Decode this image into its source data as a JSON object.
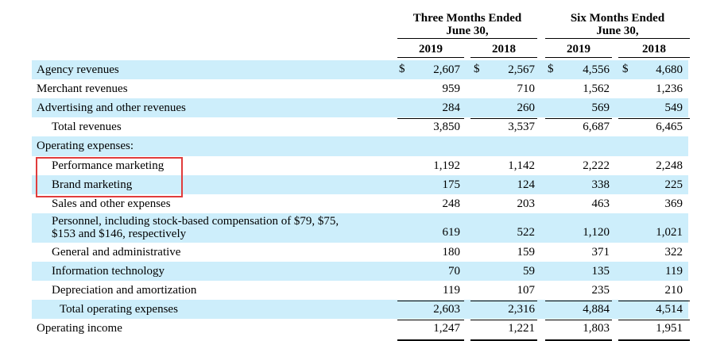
{
  "header": {
    "three_months": "Three Months Ended",
    "three_months_date": "June 30,",
    "six_months": "Six Months Ended",
    "six_months_date": "June 30,",
    "years": [
      "2019",
      "2018",
      "2019",
      "2018"
    ]
  },
  "currency_symbol": "$",
  "rows": [
    {
      "label": "Agency revenues",
      "values": [
        "2,607",
        "2,567",
        "4,556",
        "4,680"
      ],
      "shade": true
    },
    {
      "label": "Merchant revenues",
      "values": [
        "959",
        "710",
        "1,562",
        "1,236"
      ],
      "shade": false
    },
    {
      "label": "Advertising and other revenues",
      "values": [
        "284",
        "260",
        "569",
        "549"
      ],
      "shade": true
    },
    {
      "label": "Total revenues",
      "values": [
        "3,850",
        "3,537",
        "6,687",
        "6,465"
      ],
      "shade": false
    },
    {
      "label": "Operating expenses:",
      "values": [
        "",
        "",
        "",
        ""
      ],
      "shade": true
    },
    {
      "label": "Performance marketing",
      "values": [
        "1,192",
        "1,142",
        "2,222",
        "2,248"
      ],
      "shade": false
    },
    {
      "label": "Brand marketing",
      "values": [
        "175",
        "124",
        "338",
        "225"
      ],
      "shade": true
    },
    {
      "label": "Sales and other expenses",
      "values": [
        "248",
        "203",
        "463",
        "369"
      ],
      "shade": false
    },
    {
      "label": "Personnel, including stock-based compensation of $79, $75,",
      "label2": "$153 and $146, respectively",
      "values": [
        "619",
        "522",
        "1,120",
        "1,021"
      ],
      "shade": true
    },
    {
      "label": "General and administrative",
      "values": [
        "180",
        "159",
        "371",
        "322"
      ],
      "shade": false
    },
    {
      "label": "Information technology",
      "values": [
        "70",
        "59",
        "135",
        "119"
      ],
      "shade": true
    },
    {
      "label": "Depreciation and amortization",
      "values": [
        "119",
        "107",
        "235",
        "210"
      ],
      "shade": false
    },
    {
      "label": "Total operating expenses",
      "values": [
        "2,603",
        "2,316",
        "4,884",
        "4,514"
      ],
      "shade": true
    },
    {
      "label": "Operating income",
      "values": [
        "1,247",
        "1,221",
        "1,803",
        "1,951"
      ],
      "shade": false
    }
  ],
  "highlight": {
    "color": "#e03c3c",
    "rows": [
      "Performance marketing",
      "Brand marketing"
    ]
  }
}
